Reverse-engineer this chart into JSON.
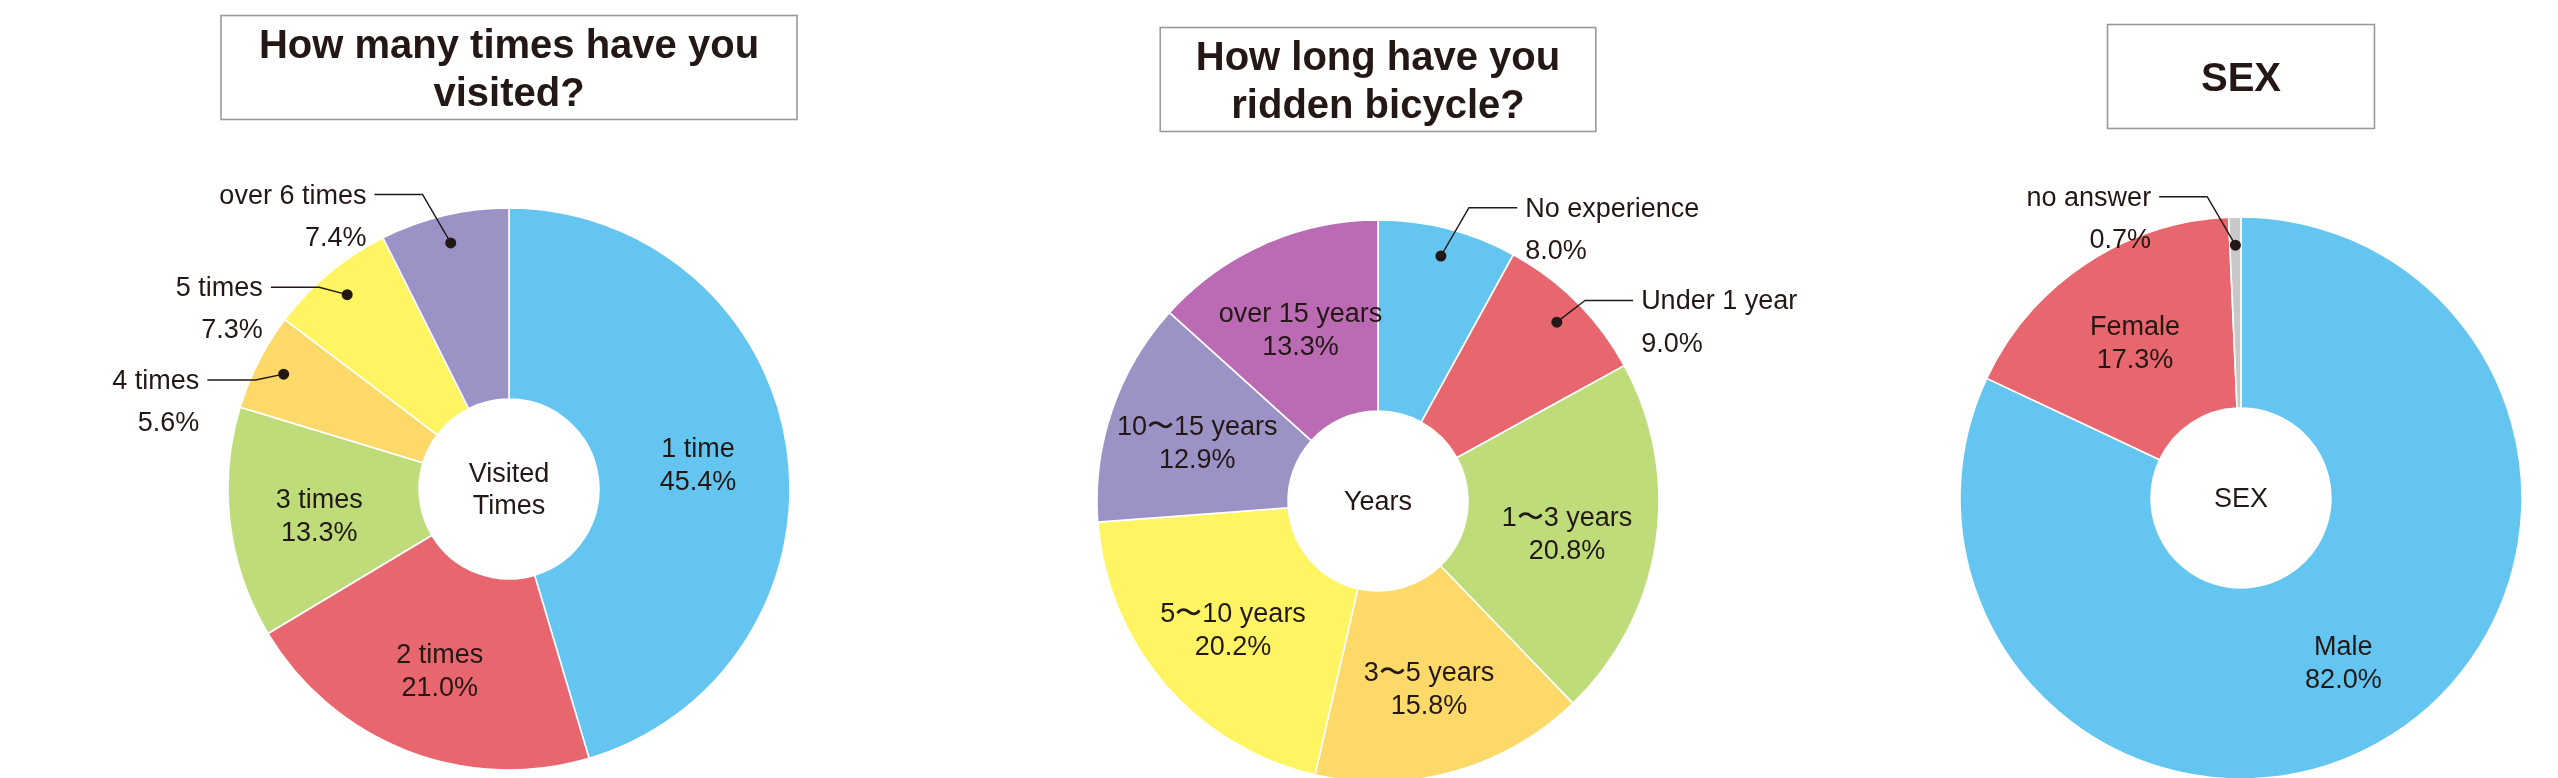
{
  "chart_data": [
    {
      "type": "donut",
      "title": "How many times have you visited?",
      "categories": [
        "1 time",
        "2 times",
        "3 times",
        "4 times",
        "5 times",
        "over 6 times"
      ],
      "values": [
        45.4,
        21.0,
        13.3,
        5.6,
        7.3,
        7.4
      ],
      "value_labels": [
        "45.4%",
        "21.0%",
        "13.3%",
        "5.6%",
        "7.3%",
        "7.4%"
      ],
      "colors": [
        "#63c5f0",
        "#e8666e",
        "#bedd7a",
        "#fdd96a",
        "#fff563",
        "#9b93c6"
      ],
      "annotations": [
        "Visited Times"
      ]
    },
    {
      "type": "donut",
      "title": "How long have you ridden bicycle?",
      "categories": [
        "No experience",
        "Under 1 year",
        "1〜3 years",
        "3〜5 years",
        "5〜10 years",
        "10〜15 years",
        "over 15 years"
      ],
      "values": [
        8.0,
        9.0,
        20.8,
        15.8,
        20.2,
        12.9,
        13.3
      ],
      "value_labels": [
        "8.0%",
        "9.0%",
        "20.8%",
        "15.8%",
        "20.2%",
        "12.9%",
        "13.3%"
      ],
      "colors": [
        "#63c5f0",
        "#e8666e",
        "#bedd7a",
        "#fdd96a",
        "#fff563",
        "#9b93c6",
        "#bb6bb3"
      ],
      "annotations": [
        "Years"
      ]
    },
    {
      "type": "donut",
      "title": "SEX",
      "categories": [
        "Male",
        "Female",
        "no answer"
      ],
      "values": [
        82.0,
        17.3,
        0.7
      ],
      "value_labels": [
        "82.0%",
        "17.3%",
        "0.7%"
      ],
      "colors": [
        "#63c5f0",
        "#e8666e",
        "#c8c8c8"
      ],
      "annotations": [
        "SEX"
      ]
    }
  ]
}
